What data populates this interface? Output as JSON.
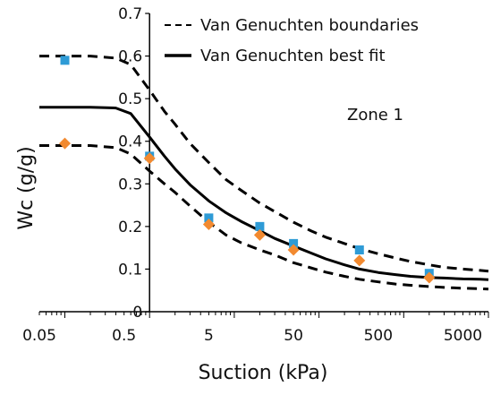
{
  "chart_data": {
    "type": "scatter",
    "xlabel": "Suction (kPa)",
    "ylabel": "Wc (g/g)",
    "xscale": "log",
    "xlim": [
      0.05,
      10000
    ],
    "ylim": [
      0,
      0.7
    ],
    "x_tick_labels": [
      "0.05",
      "0.5",
      "5",
      "50",
      "500",
      "5000"
    ],
    "y_tick_labels": [
      "0",
      "0.1",
      "0.2",
      "0.3",
      "0.4",
      "0.5",
      "0.6",
      "0.7"
    ],
    "annotation": "Zone 1",
    "legend": {
      "placement": "top-right",
      "entries": [
        "Van Genuchten boundaries",
        "Van Genuchten best fit"
      ]
    },
    "series": [
      {
        "name": "Van Genuchten boundaries",
        "style": "dashed",
        "color": "#000000",
        "x": [
          0.05,
          0.1,
          0.2,
          0.4,
          0.6,
          1,
          1.5,
          2,
          3,
          5,
          8,
          12,
          20,
          30,
          50,
          80,
          120,
          200,
          300,
          500,
          800,
          1200,
          2000,
          3000,
          5000,
          8000,
          10000
        ],
        "y": [
          0.6,
          0.6,
          0.6,
          0.595,
          0.58,
          0.52,
          0.47,
          0.44,
          0.395,
          0.35,
          0.31,
          0.285,
          0.255,
          0.235,
          0.21,
          0.19,
          0.175,
          0.16,
          0.148,
          0.136,
          0.126,
          0.118,
          0.11,
          0.104,
          0.1,
          0.097,
          0.095
        ]
      },
      {
        "name": "",
        "style": "dashed",
        "color": "#000000",
        "x": [
          0.05,
          0.1,
          0.2,
          0.4,
          0.6,
          1,
          1.5,
          2,
          3,
          5,
          8,
          12,
          20,
          30,
          50,
          80,
          120,
          200,
          300,
          500,
          800,
          1200,
          2000,
          3000,
          5000,
          8000,
          10000
        ],
        "y": [
          0.39,
          0.39,
          0.39,
          0.385,
          0.37,
          0.33,
          0.3,
          0.28,
          0.248,
          0.21,
          0.18,
          0.162,
          0.145,
          0.133,
          0.115,
          0.103,
          0.093,
          0.083,
          0.076,
          0.07,
          0.065,
          0.062,
          0.059,
          0.057,
          0.055,
          0.054,
          0.053
        ]
      },
      {
        "name": "Van Genuchten best fit",
        "style": "solid",
        "color": "#000000",
        "x": [
          0.05,
          0.1,
          0.2,
          0.4,
          0.6,
          1,
          1.5,
          2,
          3,
          5,
          8,
          12,
          20,
          30,
          50,
          80,
          120,
          200,
          300,
          500,
          800,
          1200,
          2000,
          3000,
          5000,
          8000,
          10000
        ],
        "y": [
          0.48,
          0.48,
          0.48,
          0.478,
          0.465,
          0.41,
          0.365,
          0.335,
          0.298,
          0.26,
          0.232,
          0.212,
          0.19,
          0.172,
          0.154,
          0.138,
          0.124,
          0.11,
          0.1,
          0.092,
          0.087,
          0.083,
          0.08,
          0.079,
          0.077,
          0.076,
          0.075
        ]
      },
      {
        "name": "",
        "marker": "square",
        "color": "#2E9BD6",
        "x": [
          0.1,
          1,
          5,
          20,
          50,
          300,
          2000
        ],
        "y": [
          0.59,
          0.365,
          0.22,
          0.2,
          0.16,
          0.145,
          0.09
        ]
      },
      {
        "name": "",
        "marker": "diamond",
        "color": "#F28A30",
        "x": [
          0.1,
          1,
          5,
          20,
          50,
          300,
          2000
        ],
        "y": [
          0.395,
          0.36,
          0.205,
          0.18,
          0.145,
          0.12,
          0.08
        ]
      }
    ]
  }
}
